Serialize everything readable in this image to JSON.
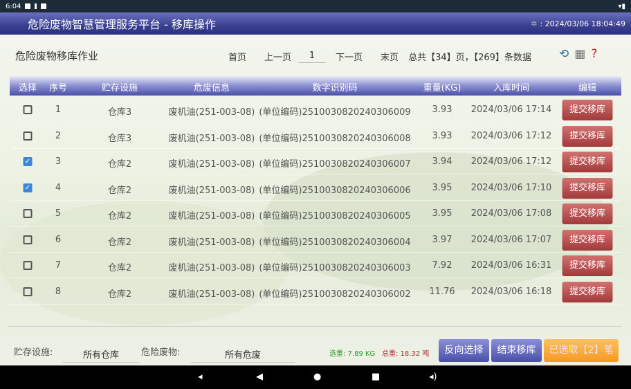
{
  "status": {
    "time": "6:04"
  },
  "title": "危险废物智慧管理服务平台 - 移库操作",
  "clock": ": 2024/03/06 18:04:49",
  "subtitle": "危险废物移库作业",
  "pager": {
    "first": "首页",
    "prev": "上一页",
    "page": "1",
    "next": "下一页",
    "last": "末页",
    "summary": "总共【34】页，【269】条数据"
  },
  "columns": [
    "选择",
    "序号",
    "贮存设施",
    "危废信息",
    "数字识别码",
    "重量(KG)",
    "入库时间",
    "编辑"
  ],
  "rows": [
    {
      "checked": false,
      "no": "1",
      "store": "仓库3",
      "info": "废机油(251-003-08)",
      "code": "(单位编码)2510030820240306009",
      "weight": "3.93",
      "time": "2024/03/06 17:14",
      "action": "提交移库"
    },
    {
      "checked": false,
      "no": "2",
      "store": "仓库3",
      "info": "废机油(251-003-08)",
      "code": "(单位编码)2510030820240306008",
      "weight": "3.93",
      "time": "2024/03/06 17:12",
      "action": "提交移库"
    },
    {
      "checked": true,
      "no": "3",
      "store": "仓库2",
      "info": "废机油(251-003-08)",
      "code": "(单位编码)2510030820240306007",
      "weight": "3.94",
      "time": "2024/03/06 17:12",
      "action": "提交移库"
    },
    {
      "checked": true,
      "no": "4",
      "store": "仓库2",
      "info": "废机油(251-003-08)",
      "code": "(单位编码)2510030820240306006",
      "weight": "3.95",
      "time": "2024/03/06 17:10",
      "action": "提交移库"
    },
    {
      "checked": false,
      "no": "5",
      "store": "仓库2",
      "info": "废机油(251-003-08)",
      "code": "(单位编码)2510030820240306005",
      "weight": "3.95",
      "time": "2024/03/06 17:08",
      "action": "提交移库"
    },
    {
      "checked": false,
      "no": "6",
      "store": "仓库2",
      "info": "废机油(251-003-08)",
      "code": "(单位编码)2510030820240306004",
      "weight": "3.97",
      "time": "2024/03/06 17:07",
      "action": "提交移库"
    },
    {
      "checked": false,
      "no": "7",
      "store": "仓库2",
      "info": "废机油(251-003-08)",
      "code": "(单位编码)2510030820240306003",
      "weight": "7.92",
      "time": "2024/03/06 16:31",
      "action": "提交移库"
    },
    {
      "checked": false,
      "no": "8",
      "store": "仓库2",
      "info": "废机油(251-003-08)",
      "code": "(单位编码)2510030820240306002",
      "weight": "11.76",
      "time": "2024/03/06 16:18",
      "action": "提交移库"
    }
  ],
  "bottom": {
    "store_label": "贮存设施:",
    "store_value": "所有仓库",
    "waste_label": "危险废物:",
    "waste_value": "所有危废",
    "selected_weight": "选重: 7.89 KG",
    "total_weight": "总重: 18.32 吨",
    "invert": "反向选择",
    "finish": "结束移库",
    "selected": "已选取【2】笔"
  },
  "colors": {
    "title": "#3a3f90",
    "header": "#4a50a8",
    "submit": "#a23a3a",
    "selected_btn": "#f5a030",
    "selected_weight": "#2a9a2a",
    "total_weight": "#b03030"
  }
}
